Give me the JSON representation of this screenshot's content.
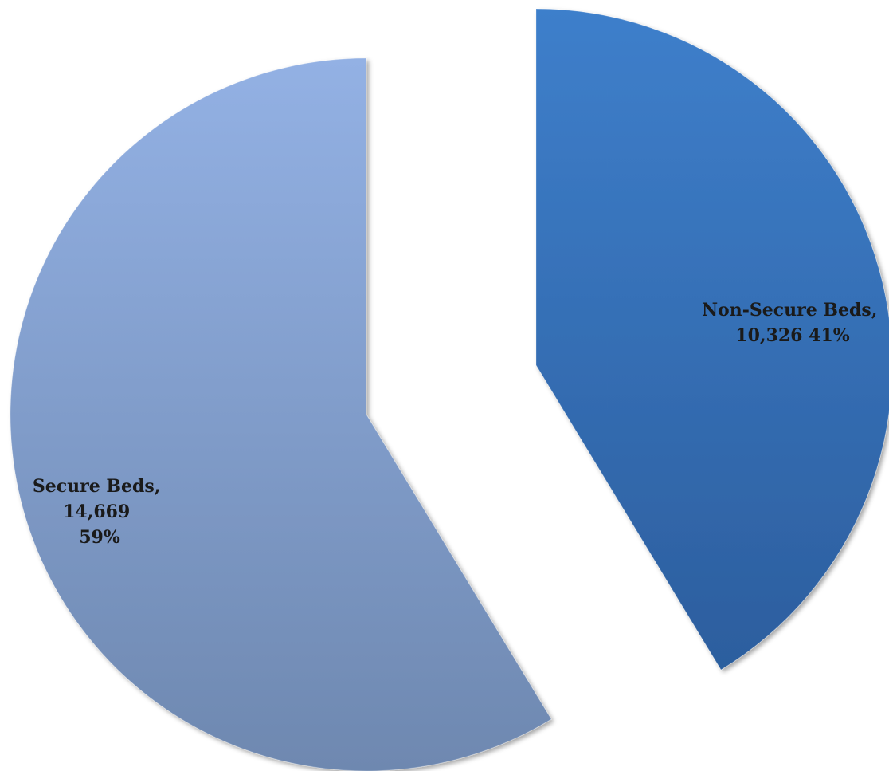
{
  "chart_data": {
    "type": "pie",
    "title": "",
    "legend": "none",
    "slices": [
      {
        "label_name": "Non-Secure Beds,",
        "label_lines": [
          "Non-Secure Beds,",
          "10,326 41%"
        ],
        "value": 10326,
        "percent": 41,
        "color_top": "#3e7fcb",
        "color_bottom": "#2c5e9e",
        "exploded": true
      },
      {
        "label_name": "Secure Beds,",
        "label_lines": [
          "Secure Beds,",
          "14,669",
          "59%"
        ],
        "value": 14669,
        "percent": 59,
        "color_top": "#93b1e4",
        "color_bottom": "#6e88b0",
        "exploded": true
      }
    ]
  }
}
